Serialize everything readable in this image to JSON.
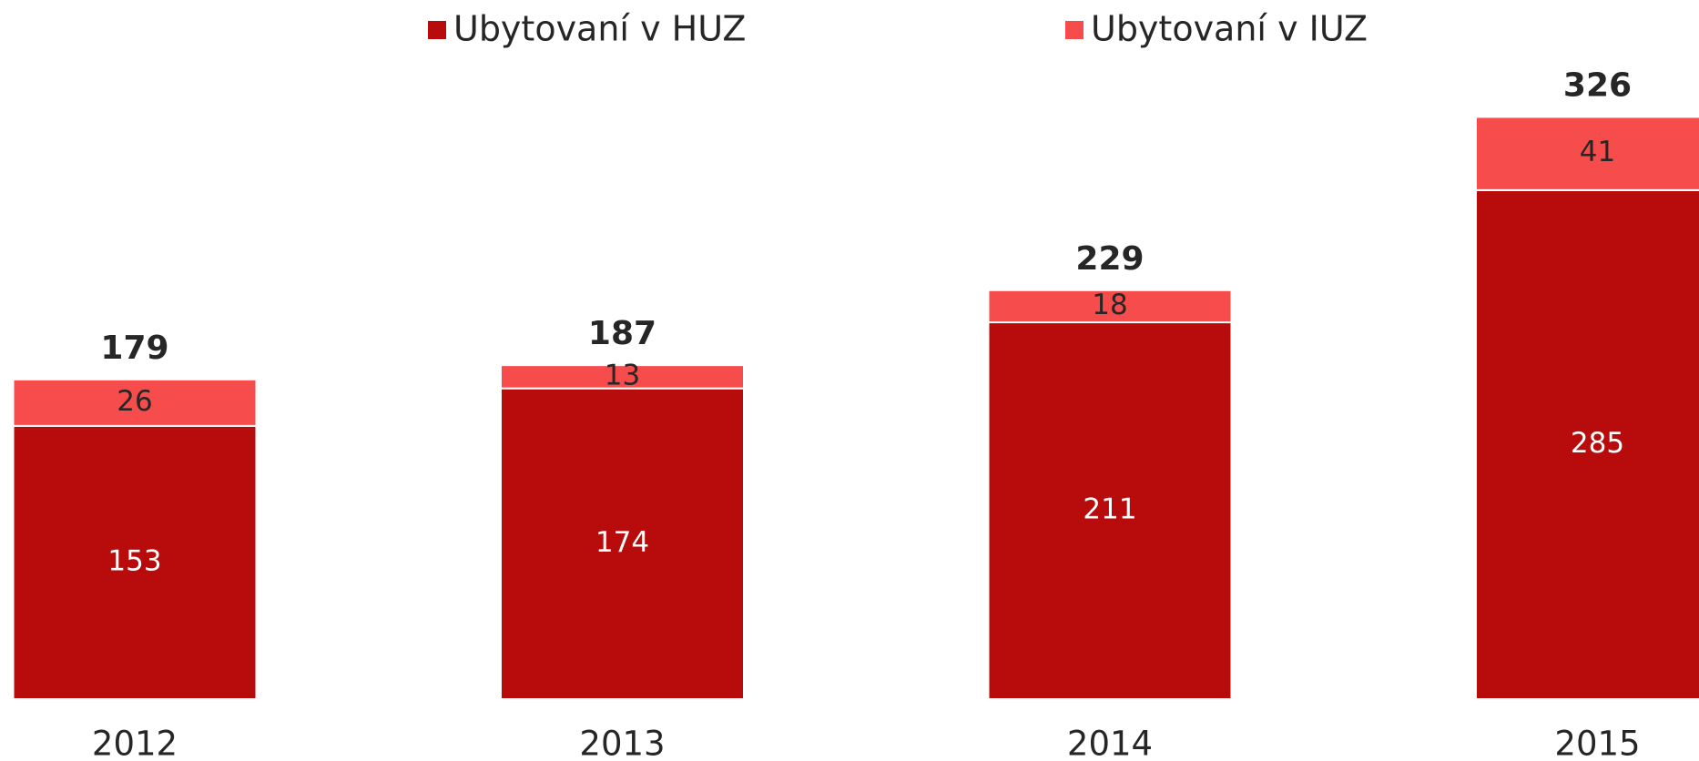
{
  "chart_data": {
    "type": "stacked_bar",
    "categories": [
      "2012",
      "2013",
      "2014",
      "2015"
    ],
    "series": [
      {
        "name": "Ubytovaní v HUZ",
        "color": "#b80c0c",
        "values": [
          153,
          174,
          211,
          285
        ]
      },
      {
        "name": "Ubytovaní v IUZ",
        "color": "#f64c4c",
        "values": [
          26,
          13,
          18,
          41
        ]
      }
    ],
    "totals": [
      179,
      187,
      229,
      326
    ],
    "ylim": [
      0,
      340
    ],
    "legend": "top"
  }
}
